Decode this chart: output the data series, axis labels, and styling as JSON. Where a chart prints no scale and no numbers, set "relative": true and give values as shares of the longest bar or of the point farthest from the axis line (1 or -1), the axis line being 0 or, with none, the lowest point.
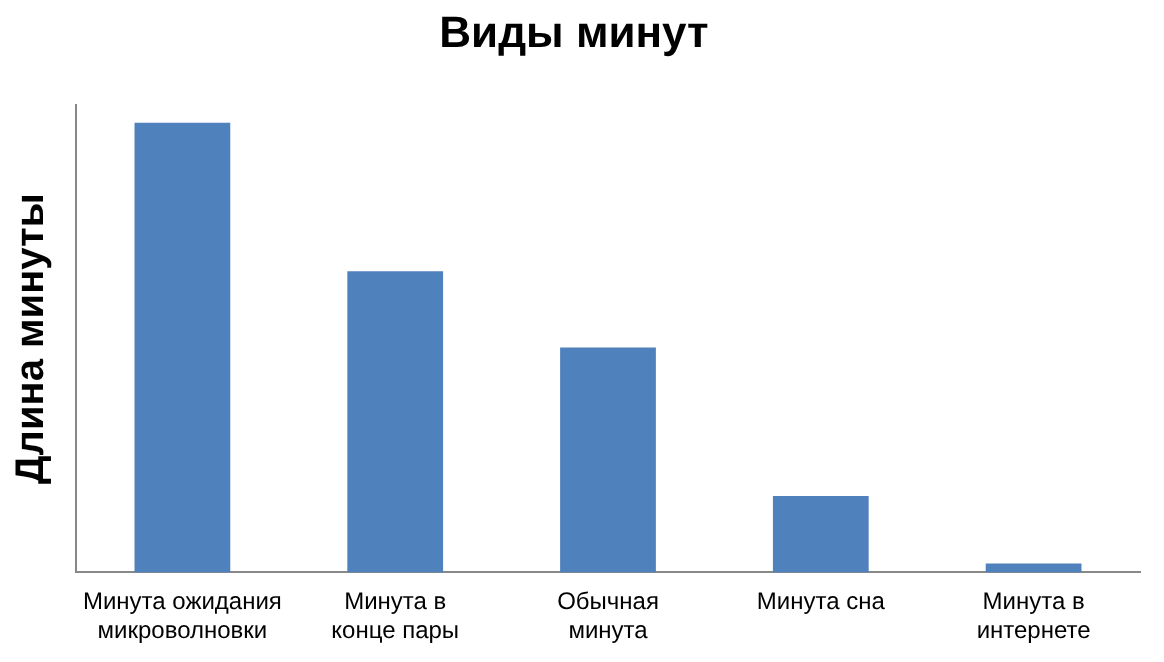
{
  "chart_data": {
    "type": "bar",
    "title": "Виды минут",
    "ylabel": "Длина минуты",
    "relative": true,
    "categories": [
      "Минута ожидания микроволновки",
      "Минута в конце пары",
      "Обычная минута",
      "Минута сна",
      "Минута в интернете"
    ],
    "values": [
      1,
      0.67,
      0.5,
      0.17,
      0.02
    ],
    "color": "#4f81bd",
    "grid": false,
    "legend": false
  }
}
